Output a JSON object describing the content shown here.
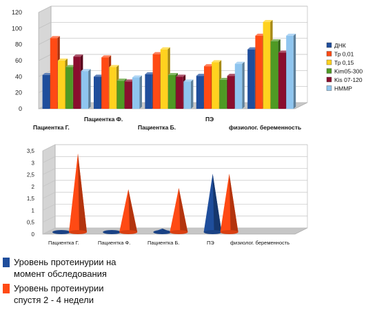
{
  "chart_data": [
    {
      "type": "bar",
      "title": "",
      "xlabel": "",
      "ylabel": "",
      "ylim": [
        0,
        120
      ],
      "yticks": [
        0,
        20,
        40,
        60,
        80,
        100,
        120
      ],
      "grid": true,
      "legend": "right",
      "categories": [
        "Пациентка Г.",
        "Пациентка Ф.",
        "Пациентка Б.",
        "ПЭ",
        "физиолог. беременность"
      ],
      "series": [
        {
          "name": "ДНК",
          "color": "#1f4e9c",
          "values": [
            42,
            40,
            43,
            41,
            74
          ]
        },
        {
          "name": "Тр 0,01",
          "color": "#ff4a14",
          "values": [
            88,
            64,
            68,
            53,
            91
          ]
        },
        {
          "name": "Тр 0,15",
          "color": "#ffd21f",
          "values": [
            60,
            52,
            74,
            58,
            108
          ]
        },
        {
          "name": "Kim05-300",
          "color": "#4f9a24",
          "values": [
            52,
            35,
            42,
            36,
            84
          ]
        },
        {
          "name": "Kis 07-120",
          "color": "#8a0e2e",
          "values": [
            65,
            34,
            40,
            41,
            70
          ]
        },
        {
          "name": "НМMP",
          "color": "#8fc5ef",
          "values": [
            47,
            39,
            34,
            56,
            91
          ]
        }
      ]
    },
    {
      "type": "bar",
      "title": "",
      "xlabel": "",
      "ylabel": "",
      "ylim": [
        0,
        3.5
      ],
      "yticks": [
        "0",
        "0,5",
        "1",
        "1,5",
        "2",
        "2,5",
        "3",
        "3,5"
      ],
      "grid": true,
      "legend": "bottom-left",
      "categories": [
        "Пациентка Г.",
        "Пациентка Ф.",
        "Пациентка Б.",
        "ПЭ",
        "физиолог. беременность"
      ],
      "series": [
        {
          "name": "Уровень протеинурии  на\nмомент обследования",
          "color": "#1f4e9c",
          "values": [
            0.02,
            0.08,
            0.15,
            2.45,
            0
          ]
        },
        {
          "name": "Уровень протеинурии\nспустя 2 - 4 недели",
          "color": "#ff4a14",
          "values": [
            3.3,
            1.8,
            1.85,
            2.45,
            0
          ]
        }
      ]
    }
  ]
}
